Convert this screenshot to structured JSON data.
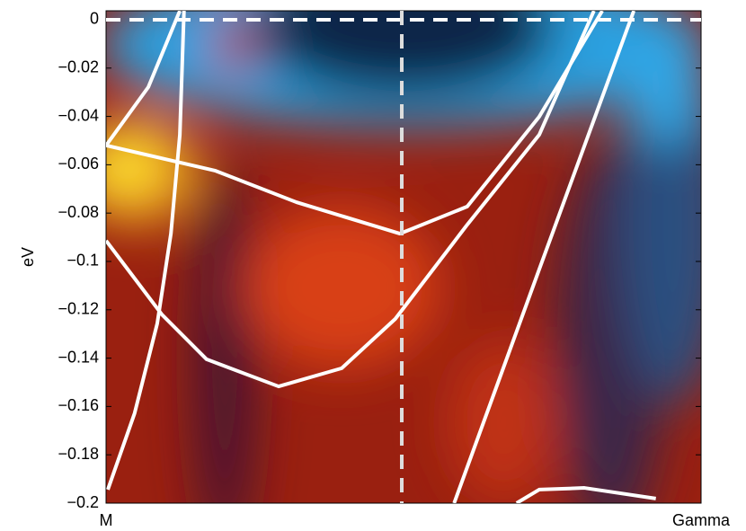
{
  "chart_data": {
    "type": "line",
    "ylabel": "eV",
    "xlim": [
      0,
      1
    ],
    "xticks": [
      {
        "value": 0,
        "label": "M"
      },
      {
        "value": 1,
        "label": "Gamma"
      }
    ],
    "ylim": [
      -0.2,
      0.0037
    ],
    "yticks": [
      {
        "value": -0.2,
        "label": "−0.2"
      },
      {
        "value": -0.18,
        "label": "−0.18"
      },
      {
        "value": -0.16,
        "label": "−0.16"
      },
      {
        "value": -0.14,
        "label": "−0.14"
      },
      {
        "value": -0.12,
        "label": "−0.12"
      },
      {
        "value": -0.1,
        "label": "−0.1"
      },
      {
        "value": -0.08,
        "label": "−0.08"
      },
      {
        "value": -0.06,
        "label": "−0.06"
      },
      {
        "value": -0.04,
        "label": "−0.04"
      },
      {
        "value": -0.02,
        "label": "−0.02"
      },
      0
    ],
    "hline": 0,
    "vline": 0.497,
    "series": [
      {
        "color": "#ffffff",
        "x": [
          0.003,
          0.048,
          0.086,
          0.109,
          0.124,
          0.131
        ],
        "values": [
          -0.1944,
          -0.1628,
          -0.1257,
          -0.0885,
          -0.0476,
          0.0037
        ]
      },
      {
        "color": "#ffffff",
        "x": [
          0,
          0.071,
          0.124
        ],
        "values": [
          -0.052,
          -0.0279,
          0.0037
        ]
      },
      {
        "color": "#ffffff",
        "x": [
          0,
          0.184,
          0.32,
          0.494,
          0.607,
          0.728,
          0.834
        ],
        "values": [
          -0.052,
          -0.0625,
          -0.0755,
          -0.0885,
          -0.0773,
          -0.0401,
          0.0037
        ]
      },
      {
        "color": "#ffffff",
        "x": [
          0,
          0.094,
          0.169,
          0.29,
          0.396,
          0.486,
          0.607,
          0.728,
          0.82
        ],
        "values": [
          -0.0914,
          -0.122,
          -0.1405,
          -0.1517,
          -0.1442,
          -0.1238,
          -0.0848,
          -0.0476,
          0.0037
        ]
      },
      {
        "color": "#ffffff",
        "x": [
          0.585,
          0.728,
          0.887
        ],
        "values": [
          -0.2,
          -0.1033,
          0.0037
        ]
      },
      {
        "color": "#ffffff",
        "x": [
          0.69,
          0.728,
          0.804,
          0.924
        ],
        "values": [
          -0.2,
          -0.1944,
          -0.1937,
          -0.1981
        ]
      }
    ]
  }
}
